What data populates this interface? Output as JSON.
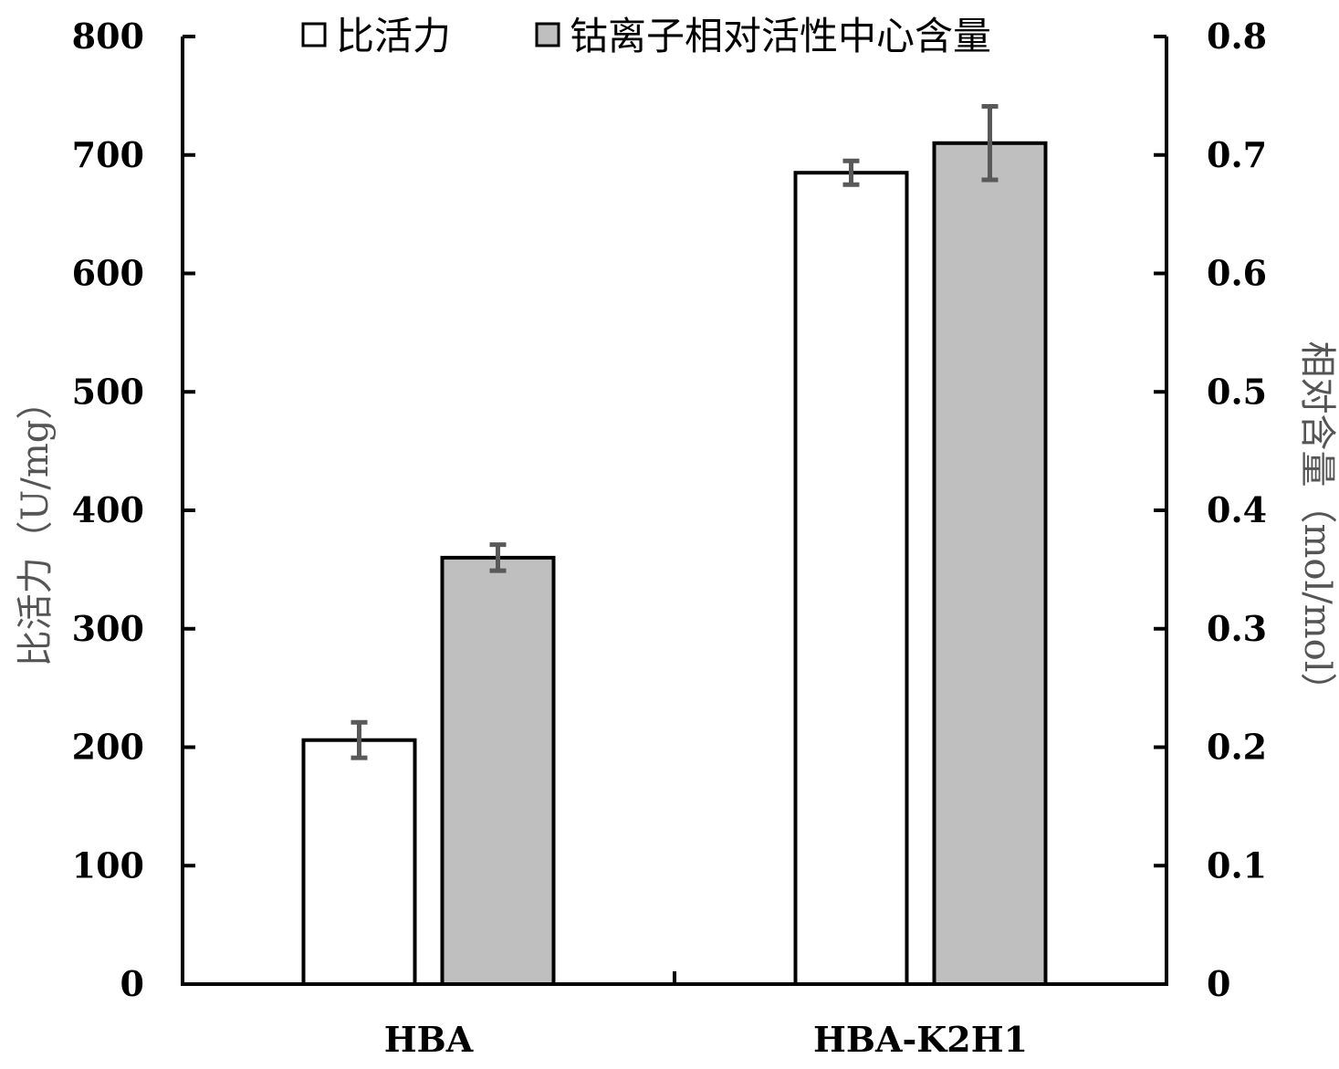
{
  "chart_data": {
    "type": "bar",
    "title": "",
    "categories": [
      "HBA",
      "HBA-K2H1"
    ],
    "series": [
      {
        "name": "比活力",
        "axis": "left",
        "color": "#ffffff",
        "values": [
          206,
          685
        ],
        "errors": [
          15,
          10
        ]
      },
      {
        "name": "钴离子相对活性中心含量",
        "axis": "right",
        "color": "#bfbfbf",
        "values": [
          0.36,
          0.71
        ],
        "errors": [
          0.011,
          0.031
        ]
      }
    ],
    "y_left": {
      "label": "比活力（U/mg）",
      "lim": [
        0,
        800
      ],
      "ticks": [
        "0",
        "100",
        "200",
        "300",
        "400",
        "500",
        "600",
        "700",
        "800"
      ]
    },
    "y_right": {
      "label": "相对含量（mol/mol）",
      "lim": [
        0,
        0.8
      ],
      "ticks": [
        "0",
        "0.1",
        "0.2",
        "0.3",
        "0.4",
        "0.5",
        "0.6",
        "0.7",
        "0.8"
      ]
    },
    "grid": false,
    "legend_position": "top-center",
    "error_bar_color": "#595959"
  }
}
